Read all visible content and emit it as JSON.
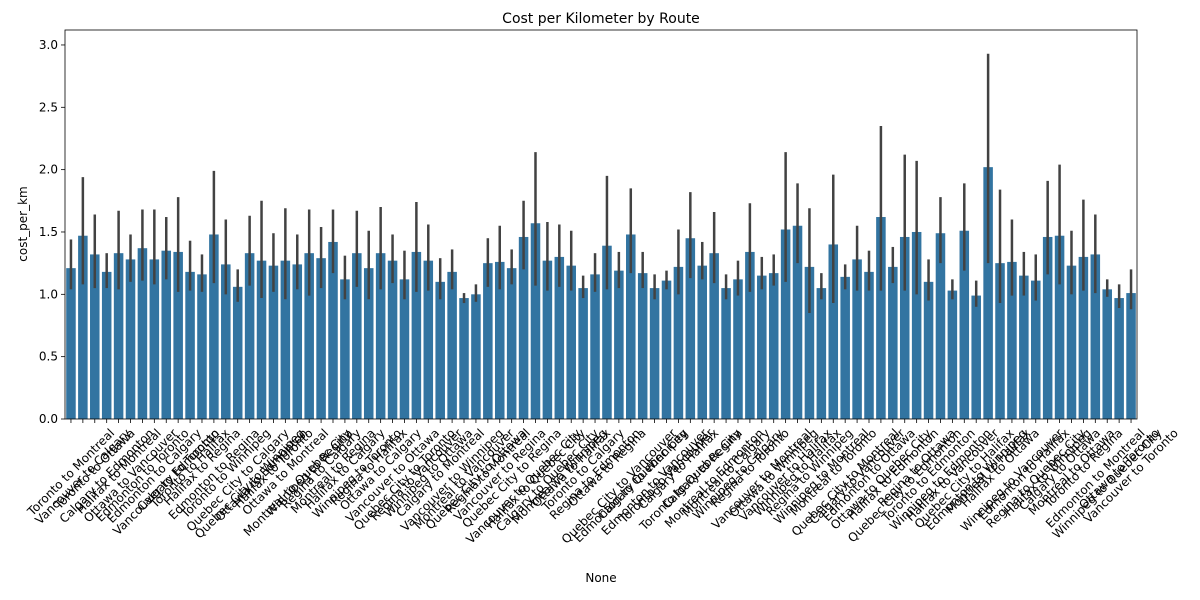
{
  "chart_data": {
    "type": "bar",
    "title": "Cost per Kilometer by Route",
    "x_label": "None",
    "y_label": "cost_per_km",
    "color": "#3274a1",
    "error_color": "#424242",
    "categories": [
      "Toronto to Montreal",
      "Vancouver to Calgary",
      "Toronto to Ottawa",
      "Calgary to Edmonton",
      "Halifax to Montreal",
      "Ottawa to Vancouver",
      "Edmonton to Toronto",
      "Edmonton to Calgary",
      "Vancouver to Edmonton",
      "Calgary to Toronto",
      "Toronto to Halifax",
      "Halifax to Regina",
      "Edmonton to Regina",
      "Toronto to Winnipeg",
      "Quebec City to Calgary",
      "Quebec City to Winnipeg",
      "Ottawa to Edmonton",
      "Halifax to Toronto",
      "Ottawa to Montreal",
      "Montreal to Quebec City",
      "Winnipeg to Regina",
      "Regina to Calgary",
      "Montreal to Regina",
      "Halifax to Calgary",
      "Winnipeg to Toronto",
      "Regina to Halifax",
      "Ottawa to Calgary",
      "Vancouver to Ottawa",
      "Quebec City to Toronto",
      "Regina to Vancouver",
      "Winnipeg to Ottawa",
      "Calgary to Montreal",
      "Vancouver to Winnipeg",
      "Montreal to Vancouver",
      "Quebec City to Ottawa",
      "Regina to Montreal",
      "Vancouver to Regina",
      "Quebec City to Regina",
      "Vancouver to Quebec City",
      "Halifax to Quebec City",
      "Calgary to Quebec City",
      "Montreal to Winnipeg",
      "Ottawa to Halifax",
      "Toronto to Calgary",
      "Regina to Edmonton",
      "Ottawa to Regina",
      "Quebec City to Vancouver",
      "Edmonton to Quebec City",
      "Calgary to Winnipeg",
      "Edmonton to Vancouver",
      "Toronto to Vancouver",
      "Calgary to Halifax",
      "Toronto to Quebec City",
      "Calgary to Regina",
      "Montreal to Edmonton",
      "Montreal to Calgary",
      "Winnipeg to Calgary",
      "Regina to Toronto",
      "Vancouver to Montreal",
      "Ottawa to Winnipeg",
      "Vancouver to Halifax",
      "Winnipeg to Halifax",
      "Regina to Winnipeg",
      "Winnipeg to Montreal",
      "Montreal to Toronto",
      "Quebec City to Montreal",
      "Calgary to Vancouver",
      "Edmonton to Ottawa",
      "Ottawa to Quebec City",
      "Halifax to Edmonton",
      "Quebec City to Edmonton",
      "Regina to Ottawa",
      "Toronto to Edmonton",
      "Winnipeg to Edmonton",
      "Halifax to Vancouver",
      "Quebec City to Halifax",
      "Edmonton to Winnipeg",
      "Montreal to Halifax",
      "Halifax to Ottawa",
      "Winnipeg to Vancouver",
      "Edmonton to Halifax",
      "Regina to Quebec City",
      "Halifax to Winnipeg",
      "Calgary to Ottawa",
      "Montreal to Ottawa",
      "Toronto to Regina",
      "Edmonton to Montreal",
      "Winnipeg to Quebec City",
      "Ottawa to Toronto",
      "Vancouver to Toronto"
    ],
    "values": [
      1.21,
      1.47,
      1.32,
      1.18,
      1.33,
      1.28,
      1.37,
      1.28,
      1.35,
      1.34,
      1.18,
      1.16,
      1.48,
      1.24,
      1.06,
      1.33,
      1.27,
      1.23,
      1.27,
      1.24,
      1.33,
      1.29,
      1.42,
      1.12,
      1.33,
      1.21,
      1.33,
      1.27,
      1.12,
      1.34,
      1.27,
      1.1,
      1.18,
      0.97,
      1.0,
      1.25,
      1.26,
      1.21,
      1.46,
      1.57,
      1.27,
      1.3,
      1.23,
      1.05,
      1.16,
      1.39,
      1.19,
      1.48,
      1.17,
      1.05,
      1.11,
      1.22,
      1.45,
      1.23,
      1.33,
      1.05,
      1.12,
      1.34,
      1.15,
      1.17,
      1.52,
      1.55,
      1.22,
      1.05,
      1.4,
      1.14,
      1.28,
      1.18,
      1.62,
      1.22,
      1.46,
      1.5,
      1.1,
      1.49,
      1.03,
      1.51,
      0.99,
      2.02,
      1.25,
      1.26,
      1.15,
      1.11,
      1.46,
      1.47,
      1.23,
      1.3,
      1.32,
      1.04,
      0.97,
      1.01
    ],
    "ci_low": [
      1.04,
      1.08,
      1.05,
      1.05,
      1.04,
      1.1,
      1.11,
      1.08,
      1.12,
      1.02,
      1.03,
      1.02,
      1.09,
      1.0,
      0.94,
      1.07,
      0.97,
      1.02,
      0.96,
      1.04,
      0.99,
      1.05,
      1.17,
      0.96,
      1.06,
      0.96,
      1.04,
      1.09,
      0.96,
      1.02,
      1.03,
      0.96,
      1.04,
      0.93,
      0.94,
      1.06,
      1.04,
      1.08,
      1.2,
      1.07,
      1.03,
      1.06,
      1.03,
      0.97,
      1.02,
      1.04,
      1.05,
      1.17,
      1.05,
      0.96,
      1.04,
      1.0,
      1.13,
      1.12,
      1.09,
      0.96,
      0.99,
      1.02,
      1.04,
      1.07,
      1.1,
      1.25,
      0.85,
      0.96,
      0.93,
      1.04,
      1.03,
      1.03,
      1.03,
      1.09,
      1.03,
      1.0,
      0.95,
      1.25,
      0.96,
      1.19,
      0.9,
      1.25,
      0.93,
      0.99,
      0.99,
      0.95,
      1.16,
      1.08,
      1.0,
      1.03,
      1.01,
      0.98,
      0.89,
      0.88
    ],
    "ci_high": [
      1.44,
      1.94,
      1.64,
      1.33,
      1.67,
      1.48,
      1.68,
      1.68,
      1.62,
      1.78,
      1.43,
      1.32,
      1.99,
      1.6,
      1.2,
      1.63,
      1.75,
      1.49,
      1.69,
      1.48,
      1.68,
      1.54,
      1.68,
      1.31,
      1.67,
      1.51,
      1.7,
      1.48,
      1.35,
      1.74,
      1.56,
      1.29,
      1.36,
      1.01,
      1.08,
      1.45,
      1.55,
      1.36,
      1.75,
      2.14,
      1.58,
      1.56,
      1.51,
      1.15,
      1.33,
      1.95,
      1.34,
      1.85,
      1.34,
      1.16,
      1.19,
      1.52,
      1.82,
      1.42,
      1.66,
      1.16,
      1.27,
      1.73,
      1.3,
      1.32,
      2.14,
      1.89,
      1.69,
      1.17,
      1.96,
      1.24,
      1.55,
      1.35,
      2.35,
      1.38,
      2.12,
      2.07,
      1.28,
      1.78,
      1.12,
      1.89,
      1.11,
      2.93,
      1.84,
      1.6,
      1.34,
      1.32,
      1.91,
      2.04,
      1.51,
      1.76,
      1.64,
      1.12,
      1.08,
      1.2
    ],
    "ylim": [
      0,
      3.12
    ],
    "yticks": [
      {
        "value": 0,
        "label": "0.0"
      },
      {
        "value": 0.5,
        "label": "0.5"
      },
      {
        "value": 1,
        "label": "1.0"
      },
      {
        "value": 1.5,
        "label": "1.5"
      },
      {
        "value": 2,
        "label": "2.0"
      },
      {
        "value": 2.5,
        "label": "2.5"
      },
      {
        "value": 3,
        "label": "3.0"
      }
    ]
  }
}
